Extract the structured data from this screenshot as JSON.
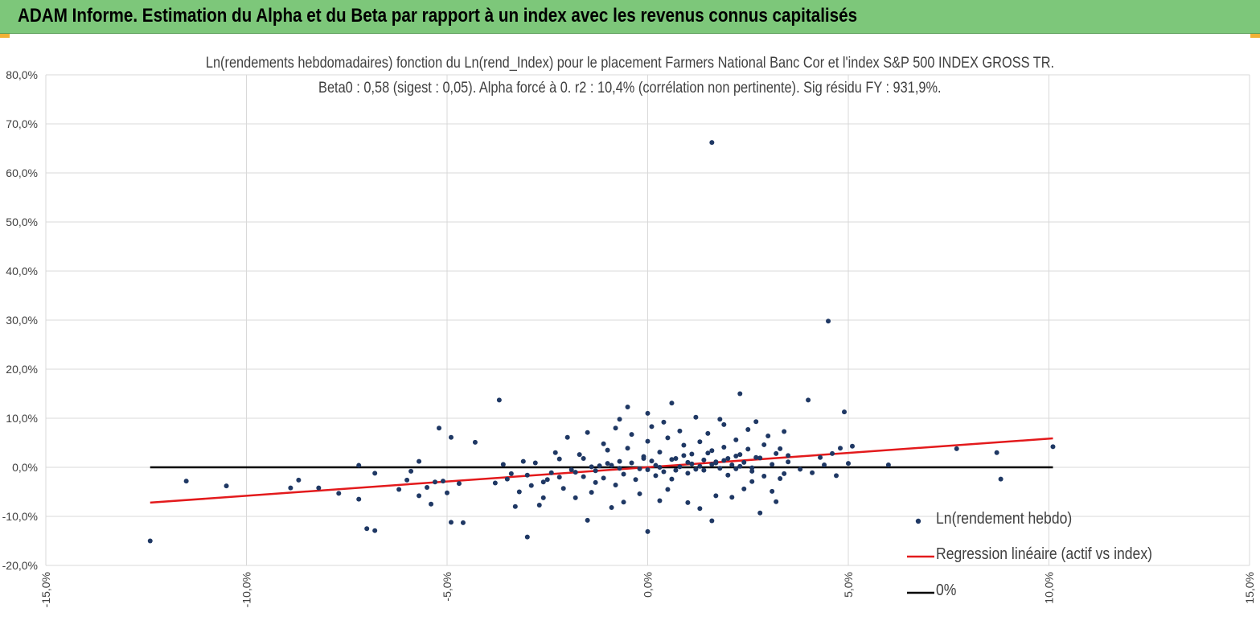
{
  "banner": {
    "title": "ADAM Informe. Estimation du Alpha et du Beta par rapport à un index avec les revenus connus capitalisés"
  },
  "colors": {
    "banner_bg": "#7dc77a",
    "corner_accent": "#f2b134",
    "points": "#1f3864",
    "regression": "#e31a1c",
    "zero_line": "#000000",
    "grid": "#d9d9d9"
  },
  "chart_data": {
    "type": "scatter",
    "title": "Ln(rendements hebdomadaires) fonction du Ln(rend_Index) pour le placement Farmers National Banc Cor et l'index S&P 500 INDEX GROSS TR.",
    "subtitle": "Beta0 : 0,58 (sigest : 0,05). Alpha forcé à 0. r2 : 10,4% (corrélation non pertinente). Sig résidu FY : 931,9%.",
    "xlim": [
      -15,
      15
    ],
    "ylim": [
      -20,
      80
    ],
    "x_ticks": [
      -15,
      -10,
      -5,
      0,
      5,
      10,
      15
    ],
    "y_ticks": [
      -20,
      -10,
      0,
      10,
      20,
      30,
      40,
      50,
      60,
      70,
      80
    ],
    "x_tick_labels": [
      "-15,0%",
      "-10,0%",
      "-5,0%",
      "0,0%",
      "5,0%",
      "10,0%",
      "15,0%"
    ],
    "y_tick_labels": [
      "-20,0%",
      "-10,0%",
      "0,0%",
      "10,0%",
      "20,0%",
      "30,0%",
      "40,0%",
      "50,0%",
      "60,0%",
      "70,0%",
      "80,0%"
    ],
    "grid": true,
    "legend_position": "bottom-right",
    "series": [
      {
        "name": "Ln(rendement hebdo)",
        "kind": "scatter",
        "points": [
          [
            1.6,
            66.2
          ],
          [
            4.5,
            29.8
          ],
          [
            -3.7,
            13.7
          ],
          [
            2.3,
            15.0
          ],
          [
            0.6,
            13.1
          ],
          [
            -0.5,
            12.3
          ],
          [
            4.0,
            13.7
          ],
          [
            4.9,
            11.3
          ],
          [
            0.0,
            11.0
          ],
          [
            -0.7,
            9.8
          ],
          [
            1.8,
            9.8
          ],
          [
            3.4,
            7.3
          ],
          [
            -5.2,
            8.0
          ],
          [
            -4.9,
            6.1
          ],
          [
            -4.3,
            5.1
          ],
          [
            -12.4,
            -15.0
          ],
          [
            -11.5,
            -2.8
          ],
          [
            -10.5,
            -3.8
          ],
          [
            -8.9,
            -4.2
          ],
          [
            -8.7,
            -2.6
          ],
          [
            -8.2,
            -4.2
          ],
          [
            -7.7,
            -5.3
          ],
          [
            -7.2,
            -6.5
          ],
          [
            -7.0,
            -12.5
          ],
          [
            -6.8,
            -12.9
          ],
          [
            -7.2,
            0.4
          ],
          [
            -6.8,
            -1.2
          ],
          [
            -6.2,
            -4.5
          ],
          [
            -5.9,
            -0.8
          ],
          [
            -5.7,
            1.2
          ],
          [
            -5.4,
            -7.5
          ],
          [
            -4.9,
            -11.2
          ],
          [
            -4.6,
            -11.3
          ],
          [
            -5.0,
            -5.2
          ],
          [
            -4.7,
            -3.3
          ],
          [
            -5.1,
            -2.8
          ],
          [
            -5.3,
            -3.0
          ],
          [
            -5.7,
            -5.8
          ],
          [
            -6.0,
            -2.6
          ],
          [
            -5.5,
            -4.1
          ],
          [
            -3.0,
            -14.2
          ],
          [
            -1.5,
            -10.8
          ],
          [
            0.0,
            -13.1
          ],
          [
            1.6,
            -10.9
          ],
          [
            2.8,
            -9.3
          ],
          [
            3.2,
            -7.0
          ],
          [
            7.7,
            3.8
          ],
          [
            8.7,
            3.0
          ],
          [
            8.8,
            -2.4
          ],
          [
            10.1,
            4.2
          ],
          [
            6.0,
            0.5
          ],
          [
            5.1,
            4.3
          ],
          [
            5.0,
            0.8
          ],
          [
            4.7,
            -1.7
          ],
          [
            3.8,
            -0.4
          ],
          [
            4.1,
            -1.1
          ],
          [
            4.3,
            2.0
          ],
          [
            4.4,
            0.5
          ],
          [
            4.6,
            2.8
          ],
          [
            4.8,
            3.9
          ],
          [
            -3.4,
            -1.3
          ],
          [
            -3.2,
            -5.0
          ],
          [
            -3.1,
            1.2
          ],
          [
            -2.7,
            -7.7
          ],
          [
            -2.5,
            -2.5
          ],
          [
            -2.3,
            3.0
          ],
          [
            -2.0,
            6.1
          ],
          [
            -1.8,
            -6.2
          ],
          [
            -1.6,
            1.8
          ],
          [
            -1.5,
            7.1
          ],
          [
            -1.3,
            -3.1
          ],
          [
            -1.1,
            4.8
          ],
          [
            -0.9,
            -8.2
          ],
          [
            -0.8,
            8.0
          ],
          [
            -0.6,
            -7.1
          ],
          [
            -0.4,
            6.7
          ],
          [
            -0.2,
            -5.4
          ],
          [
            0.1,
            8.3
          ],
          [
            0.3,
            -6.8
          ],
          [
            0.4,
            9.2
          ],
          [
            0.5,
            -4.5
          ],
          [
            0.8,
            7.4
          ],
          [
            1.0,
            -7.2
          ],
          [
            1.2,
            10.2
          ],
          [
            1.3,
            -8.4
          ],
          [
            1.5,
            6.9
          ],
          [
            1.7,
            -5.8
          ],
          [
            1.9,
            8.7
          ],
          [
            2.1,
            -6.1
          ],
          [
            2.2,
            5.6
          ],
          [
            2.4,
            -4.4
          ],
          [
            2.5,
            7.7
          ],
          [
            2.6,
            -2.9
          ],
          [
            2.7,
            9.3
          ],
          [
            2.9,
            -1.8
          ],
          [
            3.0,
            6.4
          ],
          [
            3.1,
            -4.9
          ],
          [
            3.3,
            3.8
          ],
          [
            3.4,
            -1.3
          ],
          [
            3.5,
            2.4
          ],
          [
            -3.8,
            -3.2
          ],
          [
            -3.6,
            0.6
          ],
          [
            -3.3,
            -8.0
          ],
          [
            -2.9,
            -3.7
          ],
          [
            -2.8,
            0.9
          ],
          [
            -2.6,
            -6.2
          ],
          [
            -2.4,
            -1.1
          ],
          [
            -2.2,
            1.7
          ],
          [
            -2.1,
            -4.3
          ],
          [
            -1.9,
            -0.5
          ],
          [
            -1.7,
            2.6
          ],
          [
            -1.4,
            -5.1
          ],
          [
            -1.2,
            0.3
          ],
          [
            -1.0,
            3.5
          ],
          [
            -0.8,
            -3.6
          ],
          [
            -0.7,
            1.2
          ],
          [
            -0.5,
            3.9
          ],
          [
            -0.3,
            -2.5
          ],
          [
            -0.1,
            2.2
          ],
          [
            0.0,
            5.3
          ],
          [
            0.2,
            -1.7
          ],
          [
            0.3,
            3.1
          ],
          [
            0.5,
            6.0
          ],
          [
            0.6,
            -2.4
          ],
          [
            0.7,
            1.8
          ],
          [
            0.9,
            4.5
          ],
          [
            1.0,
            -1.2
          ],
          [
            1.1,
            2.7
          ],
          [
            1.3,
            5.2
          ],
          [
            1.4,
            -0.6
          ],
          [
            1.6,
            3.4
          ],
          [
            1.7,
            0.9
          ],
          [
            1.9,
            4.1
          ],
          [
            2.0,
            -1.6
          ],
          [
            2.2,
            2.3
          ],
          [
            2.3,
            0.2
          ],
          [
            2.5,
            3.7
          ],
          [
            2.6,
            -0.8
          ],
          [
            2.8,
            1.9
          ],
          [
            2.9,
            4.6
          ],
          [
            3.1,
            0.6
          ],
          [
            3.2,
            2.8
          ],
          [
            3.3,
            -2.3
          ],
          [
            3.5,
            1.1
          ],
          [
            -1.6,
            -1.9
          ],
          [
            -1.3,
            -0.7
          ],
          [
            -1.1,
            -2.2
          ],
          [
            -0.9,
            0.4
          ],
          [
            -0.6,
            -1.4
          ],
          [
            -0.4,
            0.9
          ],
          [
            -0.2,
            -0.3
          ],
          [
            0.1,
            1.3
          ],
          [
            0.2,
            0.4
          ],
          [
            0.4,
            -0.9
          ],
          [
            0.6,
            1.6
          ],
          [
            0.8,
            0.1
          ],
          [
            0.9,
            2.4
          ],
          [
            1.1,
            0.7
          ],
          [
            1.2,
            -0.4
          ],
          [
            1.4,
            1.5
          ],
          [
            1.5,
            2.9
          ],
          [
            1.7,
            1.1
          ],
          [
            1.8,
            -0.2
          ],
          [
            2.0,
            1.8
          ],
          [
            2.1,
            0.5
          ],
          [
            2.3,
            2.6
          ],
          [
            2.4,
            1.0
          ],
          [
            2.6,
            -0.1
          ],
          [
            2.7,
            2.0
          ],
          [
            0.0,
            -0.5
          ],
          [
            -0.1,
            1.8
          ],
          [
            0.3,
            0.0
          ],
          [
            0.7,
            -0.6
          ],
          [
            1.0,
            1.0
          ],
          [
            1.3,
            0.2
          ],
          [
            1.6,
            0.6
          ],
          [
            1.9,
            1.4
          ],
          [
            2.2,
            -0.3
          ],
          [
            -0.7,
            -0.2
          ],
          [
            -1.0,
            0.8
          ],
          [
            -1.4,
            0.1
          ],
          [
            -1.8,
            -1.0
          ],
          [
            -2.2,
            -2.0
          ],
          [
            -2.6,
            -3.0
          ],
          [
            -3.0,
            -1.6
          ],
          [
            -3.5,
            -2.4
          ]
        ]
      },
      {
        "name": "Regression linéaire (actif vs index)",
        "kind": "line",
        "points": [
          [
            -12.4,
            -7.2
          ],
          [
            10.1,
            5.9
          ]
        ]
      },
      {
        "name": "0%",
        "kind": "line",
        "points": [
          [
            -12.4,
            0.0
          ],
          [
            10.1,
            0.0
          ]
        ]
      }
    ]
  }
}
